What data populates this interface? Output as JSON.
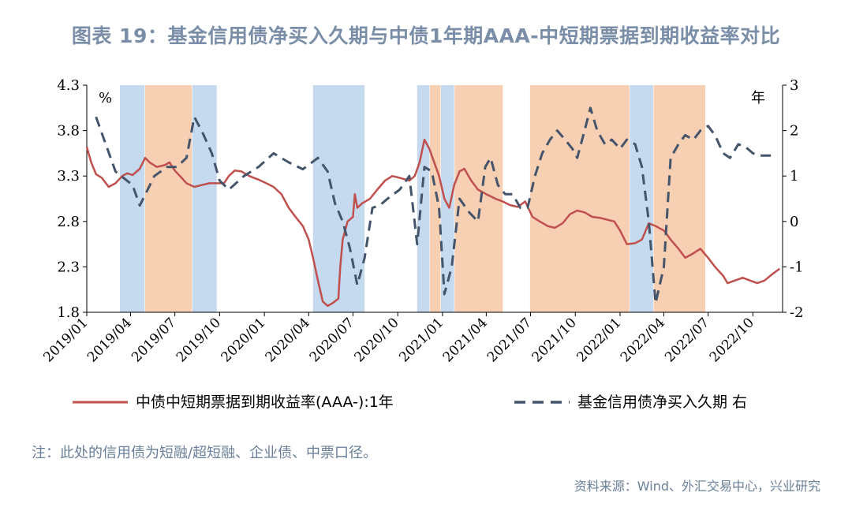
{
  "title": "图表 19：基金信用债净买入久期与中债1年期AAA-中短期票据到期收益率对比",
  "note": "注：此处的信用债为短融/超短融、企业债、中票口径。",
  "source": "资料来源：Wind、外汇交易中心，兴业研究",
  "colors": {
    "title": "#7a8ea8",
    "yield_line": "#c0504d",
    "duration_line": "#44546a",
    "band_blue": "#c5d9ef",
    "band_orange": "#f7cfb3"
  },
  "chart_data": {
    "type": "line",
    "x_labels": [
      "2019/01",
      "2019/04",
      "2019/07",
      "2019/10",
      "2020/01",
      "2020/04",
      "2020/07",
      "2020/10",
      "2021/01",
      "2021/04",
      "2021/07",
      "2021/10",
      "2022/01",
      "2022/04",
      "2022/07",
      "2022/10"
    ],
    "left_axis": {
      "unit": "%",
      "ylim": [
        1.8,
        4.3
      ],
      "ticks": [
        "4.3",
        "3.8",
        "3.3",
        "2.8",
        "2.3",
        "1.8"
      ]
    },
    "right_axis": {
      "unit": "年",
      "ylim": [
        -2,
        3
      ],
      "ticks": [
        "3",
        "2",
        "1",
        "0",
        "-1",
        "-2"
      ]
    },
    "bands": [
      {
        "color": "blue",
        "start": "2019/03/10",
        "end": "2019/04/30"
      },
      {
        "color": "orange",
        "start": "2019/05/01",
        "end": "2019/08/05"
      },
      {
        "color": "blue",
        "start": "2019/08/06",
        "end": "2019/09/25"
      },
      {
        "color": "blue",
        "start": "2020/04/10",
        "end": "2020/07/25"
      },
      {
        "color": "blue",
        "start": "2020/11/10",
        "end": "2020/12/05"
      },
      {
        "color": "orange",
        "start": "2020/12/06",
        "end": "2020/12/28"
      },
      {
        "color": "blue",
        "start": "2020/12/29",
        "end": "2021/01/25"
      },
      {
        "color": "orange",
        "start": "2021/01/26",
        "end": "2021/05/05"
      },
      {
        "color": "orange",
        "start": "2021/06/30",
        "end": "2022/01/20"
      },
      {
        "color": "blue",
        "start": "2022/01/21",
        "end": "2022/03/10"
      },
      {
        "color": "orange",
        "start": "2022/03/11",
        "end": "2022/06/25"
      }
    ],
    "series": [
      {
        "name": "中债中短期票据到期收益率(AAA-):1年",
        "axis": "left",
        "style": "solid",
        "points": [
          [
            "2019/01/01",
            3.62
          ],
          [
            "2019/01/10",
            3.45
          ],
          [
            "2019/01/20",
            3.32
          ],
          [
            "2019/02/01",
            3.28
          ],
          [
            "2019/02/15",
            3.18
          ],
          [
            "2019/03/01",
            3.22
          ],
          [
            "2019/03/15",
            3.3
          ],
          [
            "2019/03/25",
            3.33
          ],
          [
            "2019/04/05",
            3.31
          ],
          [
            "2019/04/20",
            3.38
          ],
          [
            "2019/05/01",
            3.5
          ],
          [
            "2019/05/10",
            3.45
          ],
          [
            "2019/05/25",
            3.4
          ],
          [
            "2019/06/10",
            3.42
          ],
          [
            "2019/06/20",
            3.45
          ],
          [
            "2019/07/01",
            3.36
          ],
          [
            "2019/07/15",
            3.28
          ],
          [
            "2019/07/25",
            3.22
          ],
          [
            "2019/08/10",
            3.18
          ],
          [
            "2019/08/25",
            3.2
          ],
          [
            "2019/09/10",
            3.22
          ],
          [
            "2019/09/25",
            3.22
          ],
          [
            "2019/10/10",
            3.22
          ],
          [
            "2019/10/20",
            3.3
          ],
          [
            "2019/11/01",
            3.36
          ],
          [
            "2019/11/15",
            3.35
          ],
          [
            "2019/12/01",
            3.3
          ],
          [
            "2019/12/20",
            3.26
          ],
          [
            "2020/01/05",
            3.22
          ],
          [
            "2020/01/20",
            3.18
          ],
          [
            "2020/02/05",
            3.1
          ],
          [
            "2020/02/20",
            2.95
          ],
          [
            "2020/03/05",
            2.85
          ],
          [
            "2020/03/20",
            2.75
          ],
          [
            "2020/04/01",
            2.6
          ],
          [
            "2020/04/10",
            2.4
          ],
          [
            "2020/04/20",
            2.15
          ],
          [
            "2020/04/30",
            1.92
          ],
          [
            "2020/05/10",
            1.87
          ],
          [
            "2020/05/20",
            1.9
          ],
          [
            "2020/06/01",
            1.95
          ],
          [
            "2020/06/05",
            2.3
          ],
          [
            "2020/06/10",
            2.6
          ],
          [
            "2020/06/20",
            2.8
          ],
          [
            "2020/07/01",
            2.85
          ],
          [
            "2020/07/05",
            3.1
          ],
          [
            "2020/07/10",
            2.95
          ],
          [
            "2020/07/20",
            3.0
          ],
          [
            "2020/08/05",
            3.05
          ],
          [
            "2020/08/20",
            3.15
          ],
          [
            "2020/09/05",
            3.25
          ],
          [
            "2020/09/20",
            3.3
          ],
          [
            "2020/10/05",
            3.28
          ],
          [
            "2020/10/25",
            3.25
          ],
          [
            "2020/11/05",
            3.3
          ],
          [
            "2020/11/15",
            3.45
          ],
          [
            "2020/11/25",
            3.7
          ],
          [
            "2020/12/05",
            3.6
          ],
          [
            "2020/12/15",
            3.45
          ],
          [
            "2020/12/25",
            3.3
          ],
          [
            "2021/01/05",
            3.05
          ],
          [
            "2021/01/15",
            2.95
          ],
          [
            "2021/01/25",
            3.2
          ],
          [
            "2021/02/05",
            3.35
          ],
          [
            "2021/02/15",
            3.38
          ],
          [
            "2021/03/01",
            3.25
          ],
          [
            "2021/03/15",
            3.15
          ],
          [
            "2021/04/01",
            3.1
          ],
          [
            "2021/04/20",
            3.05
          ],
          [
            "2021/05/05",
            3.02
          ],
          [
            "2021/05/20",
            2.98
          ],
          [
            "2021/06/05",
            2.96
          ],
          [
            "2021/06/20",
            3.02
          ],
          [
            "2021/07/05",
            2.85
          ],
          [
            "2021/07/20",
            2.8
          ],
          [
            "2021/08/05",
            2.75
          ],
          [
            "2021/08/20",
            2.73
          ],
          [
            "2021/09/05",
            2.78
          ],
          [
            "2021/09/20",
            2.88
          ],
          [
            "2021/10/05",
            2.92
          ],
          [
            "2021/10/20",
            2.9
          ],
          [
            "2021/11/05",
            2.85
          ],
          [
            "2021/11/20",
            2.84
          ],
          [
            "2021/12/05",
            2.82
          ],
          [
            "2021/12/20",
            2.8
          ],
          [
            "2022/01/01",
            2.7
          ],
          [
            "2022/01/15",
            2.55
          ],
          [
            "2022/02/01",
            2.56
          ],
          [
            "2022/02/15",
            2.6
          ],
          [
            "2022/03/01",
            2.78
          ],
          [
            "2022/03/15",
            2.75
          ],
          [
            "2022/04/01",
            2.7
          ],
          [
            "2022/04/15",
            2.6
          ],
          [
            "2022/05/01",
            2.5
          ],
          [
            "2022/05/15",
            2.4
          ],
          [
            "2022/06/01",
            2.45
          ],
          [
            "2022/06/15",
            2.5
          ],
          [
            "2022/07/01",
            2.4
          ],
          [
            "2022/07/15",
            2.3
          ],
          [
            "2022/08/01",
            2.2
          ],
          [
            "2022/08/10",
            2.12
          ],
          [
            "2022/08/25",
            2.15
          ],
          [
            "2022/09/10",
            2.18
          ],
          [
            "2022/09/25",
            2.15
          ],
          [
            "2022/10/10",
            2.12
          ],
          [
            "2022/10/25",
            2.15
          ],
          [
            "2022/11/10",
            2.22
          ],
          [
            "2022/11/25",
            2.28
          ]
        ]
      },
      {
        "name": "基金信用债净买入久期 右",
        "axis": "right",
        "style": "dashed",
        "points": [
          [
            "2019/01/20",
            2.3
          ],
          [
            "2019/03/01",
            1.1
          ],
          [
            "2019/04/05",
            0.8
          ],
          [
            "2019/04/20",
            0.35
          ],
          [
            "2019/05/20",
            1.0
          ],
          [
            "2019/06/15",
            1.2
          ],
          [
            "2019/07/05",
            1.2
          ],
          [
            "2019/07/25",
            1.4
          ],
          [
            "2019/08/10",
            2.3
          ],
          [
            "2019/08/25",
            2.0
          ],
          [
            "2019/09/15",
            1.5
          ],
          [
            "2019/10/01",
            0.9
          ],
          [
            "2019/10/20",
            0.7
          ],
          [
            "2019/11/20",
            1.0
          ],
          [
            "2019/12/20",
            1.2
          ],
          [
            "2020/01/20",
            1.5
          ],
          [
            "2020/02/20",
            1.3
          ],
          [
            "2020/03/20",
            1.15
          ],
          [
            "2020/04/20",
            1.4
          ],
          [
            "2020/05/10",
            1.1
          ],
          [
            "2020/05/25",
            0.4
          ],
          [
            "2020/06/10",
            0.0
          ],
          [
            "2020/06/25",
            -0.6
          ],
          [
            "2020/07/10",
            -1.4
          ],
          [
            "2020/07/25",
            -0.8
          ],
          [
            "2020/08/10",
            0.3
          ],
          [
            "2020/08/25",
            0.35
          ],
          [
            "2020/09/10",
            0.5
          ],
          [
            "2020/10/05",
            0.7
          ],
          [
            "2020/10/25",
            1.0
          ],
          [
            "2020/11/10",
            -0.5
          ],
          [
            "2020/11/25",
            1.2
          ],
          [
            "2020/12/10",
            1.1
          ],
          [
            "2020/12/25",
            0.3
          ],
          [
            "2021/01/05",
            -1.6
          ],
          [
            "2021/01/20",
            -1.0
          ],
          [
            "2021/02/05",
            0.5
          ],
          [
            "2021/02/25",
            0.2
          ],
          [
            "2021/03/15",
            0.0
          ],
          [
            "2021/03/30",
            1.2
          ],
          [
            "2021/04/10",
            1.4
          ],
          [
            "2021/04/25",
            0.8
          ],
          [
            "2021/05/10",
            0.6
          ],
          [
            "2021/05/25",
            0.6
          ],
          [
            "2021/06/10",
            0.3
          ],
          [
            "2021/06/25",
            0.3
          ],
          [
            "2021/07/10",
            1.0
          ],
          [
            "2021/07/25",
            1.5
          ],
          [
            "2021/08/10",
            1.8
          ],
          [
            "2021/08/25",
            2.0
          ],
          [
            "2021/09/10",
            1.8
          ],
          [
            "2021/09/25",
            1.6
          ],
          [
            "2021/10/05",
            1.4
          ],
          [
            "2021/10/20",
            2.0
          ],
          [
            "2021/11/01",
            2.5
          ],
          [
            "2021/11/15",
            2.0
          ],
          [
            "2021/12/01",
            1.7
          ],
          [
            "2021/12/15",
            1.8
          ],
          [
            "2022/01/01",
            1.6
          ],
          [
            "2022/01/15",
            1.8
          ],
          [
            "2022/02/01",
            1.7
          ],
          [
            "2022/02/15",
            1.2
          ],
          [
            "2022/03/01",
            0.0
          ],
          [
            "2022/03/15",
            -1.8
          ],
          [
            "2022/04/01",
            -1.0
          ],
          [
            "2022/04/15",
            1.4
          ],
          [
            "2022/05/01",
            1.7
          ],
          [
            "2022/05/15",
            1.9
          ],
          [
            "2022/06/01",
            1.8
          ],
          [
            "2022/06/15",
            2.0
          ],
          [
            "2022/07/01",
            2.1
          ],
          [
            "2022/07/15",
            1.9
          ],
          [
            "2022/08/01",
            1.5
          ],
          [
            "2022/08/15",
            1.4
          ],
          [
            "2022/09/01",
            1.7
          ],
          [
            "2022/09/15",
            1.65
          ],
          [
            "2022/10/01",
            1.5
          ],
          [
            "2022/10/15",
            1.45
          ],
          [
            "2022/11/01",
            1.45
          ],
          [
            "2022/11/20",
            1.45
          ]
        ]
      }
    ]
  },
  "legend": {
    "yield_label": "中债中短期票据到期收益率(AAA-):1年",
    "duration_label": "基金信用债净买入久期 右"
  }
}
